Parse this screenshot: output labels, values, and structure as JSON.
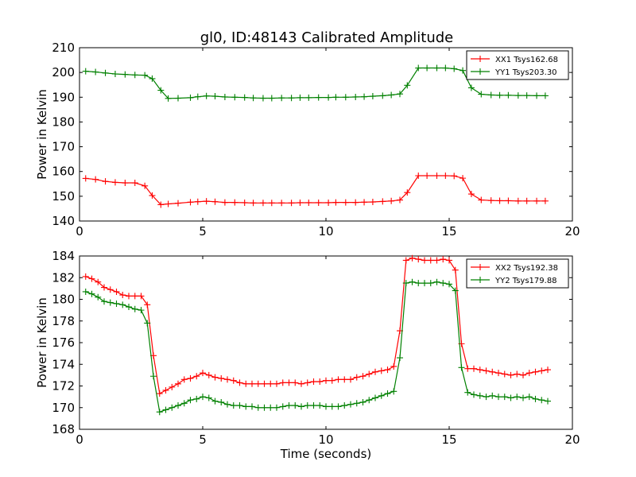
{
  "title": "gl0, ID:48143 Calibrated Amplitude",
  "chart_data": [
    {
      "type": "line",
      "ylabel": "Power in Kelvin",
      "xlabel": "",
      "xlim": [
        0,
        20
      ],
      "ylim": [
        140,
        210
      ],
      "xticks": [
        0,
        5,
        10,
        15,
        20
      ],
      "yticks": [
        140,
        150,
        160,
        170,
        180,
        190,
        200,
        210
      ],
      "grid": false,
      "legend_position": "top-right",
      "x": [
        0.25,
        0.65,
        1.05,
        1.45,
        1.85,
        2.25,
        2.65,
        2.95,
        3.3,
        3.6,
        4.0,
        4.5,
        4.8,
        5.15,
        5.5,
        5.9,
        6.3,
        6.7,
        7.05,
        7.45,
        7.8,
        8.2,
        8.6,
        8.95,
        9.3,
        9.7,
        10.1,
        10.4,
        10.8,
        11.2,
        11.55,
        11.9,
        12.3,
        12.65,
        13.0,
        13.3,
        13.75,
        14.1,
        14.5,
        14.85,
        15.2,
        15.55,
        15.9,
        16.3,
        16.7,
        17.05,
        17.4,
        17.8,
        18.15,
        18.55,
        18.9
      ],
      "series": [
        {
          "name": "XX1 Tsys162.68",
          "color": "#ff0000",
          "values": [
            157.2,
            156.8,
            156.0,
            155.6,
            155.4,
            155.4,
            154.2,
            150.3,
            146.6,
            146.9,
            147.2,
            147.6,
            147.8,
            148.0,
            147.8,
            147.5,
            147.5,
            147.4,
            147.3,
            147.3,
            147.3,
            147.3,
            147.3,
            147.4,
            147.4,
            147.4,
            147.4,
            147.5,
            147.5,
            147.5,
            147.6,
            147.7,
            147.9,
            148.1,
            148.5,
            151.5,
            158.3,
            158.3,
            158.3,
            158.3,
            158.2,
            157.3,
            150.9,
            148.5,
            148.3,
            148.2,
            148.2,
            148.1,
            148.1,
            148.1,
            148.1
          ]
        },
        {
          "name": "YY1 Tsys203.30",
          "color": "#008000",
          "values": [
            200.5,
            200.2,
            199.8,
            199.4,
            199.2,
            199.0,
            198.9,
            197.5,
            192.8,
            189.5,
            189.6,
            189.8,
            190.2,
            190.5,
            190.4,
            190.1,
            190.0,
            189.9,
            189.7,
            189.6,
            189.6,
            189.7,
            189.7,
            189.8,
            189.8,
            189.9,
            189.9,
            190.0,
            190.0,
            190.1,
            190.2,
            190.4,
            190.6,
            190.9,
            191.3,
            194.8,
            201.8,
            201.8,
            201.8,
            201.8,
            201.5,
            200.8,
            193.8,
            191.2,
            190.9,
            190.8,
            190.8,
            190.7,
            190.7,
            190.6,
            190.6
          ]
        }
      ]
    },
    {
      "type": "line",
      "ylabel": "Power in Kelvin",
      "xlabel": "Time (seconds)",
      "xlim": [
        0,
        20
      ],
      "ylim": [
        168,
        184
      ],
      "xticks": [
        0,
        5,
        10,
        15,
        20
      ],
      "yticks": [
        168,
        170,
        172,
        174,
        176,
        178,
        180,
        182,
        184
      ],
      "grid": false,
      "legend_position": "top-right",
      "x": [
        0.25,
        0.5,
        0.75,
        1.0,
        1.25,
        1.5,
        1.75,
        2.0,
        2.25,
        2.5,
        2.75,
        3.0,
        3.25,
        3.5,
        3.75,
        4.0,
        4.25,
        4.5,
        4.75,
        5.0,
        5.25,
        5.5,
        5.75,
        6.0,
        6.25,
        6.5,
        6.75,
        7.0,
        7.25,
        7.5,
        7.75,
        8.0,
        8.25,
        8.5,
        8.75,
        9.0,
        9.25,
        9.5,
        9.75,
        10.0,
        10.25,
        10.5,
        10.75,
        11.0,
        11.25,
        11.5,
        11.75,
        12.0,
        12.25,
        12.5,
        12.75,
        13.0,
        13.25,
        13.5,
        13.75,
        14.0,
        14.25,
        14.5,
        14.75,
        15.0,
        15.25,
        15.5,
        15.75,
        16.0,
        16.25,
        16.5,
        16.75,
        17.0,
        17.25,
        17.5,
        17.75,
        18.0,
        18.25,
        18.5,
        18.75,
        19.0
      ],
      "series": [
        {
          "name": "XX2 Tsys192.38",
          "color": "#ff0000",
          "values": [
            182.1,
            181.9,
            181.6,
            181.1,
            180.9,
            180.7,
            180.4,
            180.3,
            180.3,
            180.3,
            179.5,
            174.8,
            171.3,
            171.6,
            171.9,
            172.2,
            172.6,
            172.7,
            172.9,
            173.2,
            173.0,
            172.8,
            172.7,
            172.6,
            172.5,
            172.3,
            172.2,
            172.2,
            172.2,
            172.2,
            172.2,
            172.2,
            172.3,
            172.3,
            172.3,
            172.2,
            172.3,
            172.4,
            172.4,
            172.5,
            172.5,
            172.6,
            172.6,
            172.6,
            172.8,
            172.9,
            173.1,
            173.3,
            173.4,
            173.5,
            173.8,
            177.1,
            183.6,
            183.8,
            183.7,
            183.6,
            183.6,
            183.6,
            183.7,
            183.6,
            182.7,
            175.9,
            173.6,
            173.6,
            173.5,
            173.4,
            173.3,
            173.2,
            173.1,
            173.0,
            173.1,
            173.0,
            173.2,
            173.3,
            173.4,
            173.5
          ]
        },
        {
          "name": "YY2 Tsys179.88",
          "color": "#008000",
          "values": [
            180.7,
            180.5,
            180.2,
            179.8,
            179.7,
            179.6,
            179.5,
            179.3,
            179.1,
            179.0,
            177.8,
            172.9,
            169.6,
            169.8,
            170.0,
            170.2,
            170.4,
            170.7,
            170.8,
            171.0,
            170.9,
            170.6,
            170.5,
            170.3,
            170.2,
            170.2,
            170.1,
            170.1,
            170.0,
            170.0,
            170.0,
            170.0,
            170.1,
            170.2,
            170.2,
            170.1,
            170.2,
            170.2,
            170.2,
            170.1,
            170.1,
            170.1,
            170.2,
            170.3,
            170.4,
            170.5,
            170.7,
            170.9,
            171.1,
            171.3,
            171.5,
            174.6,
            181.5,
            181.6,
            181.5,
            181.5,
            181.5,
            181.6,
            181.5,
            181.4,
            180.8,
            173.7,
            171.4,
            171.2,
            171.1,
            171.0,
            171.1,
            171.0,
            171.0,
            170.9,
            171.0,
            170.9,
            171.0,
            170.8,
            170.7,
            170.6
          ]
        }
      ]
    }
  ]
}
